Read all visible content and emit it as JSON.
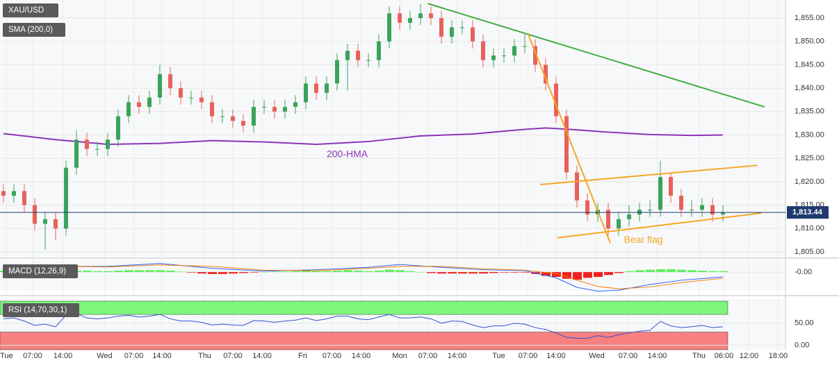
{
  "chart_data": [
    {
      "type": "candlestick",
      "title": "XAU/USD",
      "indicator_label": "SMA (200,0)",
      "up_color": "#3aa35b",
      "down_color": "#e8615a",
      "grid": true,
      "xlim": [
        -0.33,
        75
      ],
      "ylim": [
        1803.96,
        1858.86
      ],
      "xticks": [
        {
          "value": 0.3,
          "label": "Tue"
        },
        {
          "value": 2.8,
          "label": "07:00"
        },
        {
          "value": 5.7,
          "label": "14:00"
        },
        {
          "value": 9.7,
          "label": "Wed"
        },
        {
          "value": 12.5,
          "label": "07:00"
        },
        {
          "value": 15.2,
          "label": "14:00"
        },
        {
          "value": 19.3,
          "label": "Thu"
        },
        {
          "value": 22,
          "label": "07:00"
        },
        {
          "value": 24.8,
          "label": "14:00"
        },
        {
          "value": 28.7,
          "label": "Fri"
        },
        {
          "value": 31.5,
          "label": "07:00"
        },
        {
          "value": 34.3,
          "label": "14:00"
        },
        {
          "value": 38,
          "label": "Mon"
        },
        {
          "value": 40.7,
          "label": "07:00"
        },
        {
          "value": 43.5,
          "label": "14:00"
        },
        {
          "value": 47.5,
          "label": "Tue"
        },
        {
          "value": 50.3,
          "label": "07:00"
        },
        {
          "value": 53,
          "label": "14:00"
        },
        {
          "value": 56.9,
          "label": "Wed"
        },
        {
          "value": 59.9,
          "label": "07:00"
        },
        {
          "value": 62.7,
          "label": "14:00"
        },
        {
          "value": 66.7,
          "label": "Thu"
        },
        {
          "value": 69.1,
          "label": "06:00"
        },
        {
          "value": 71.5,
          "label": "12:00"
        },
        {
          "value": 74.3,
          "label": "18:00"
        }
      ],
      "yticks": [
        {
          "value": 1805,
          "label": "1,805.00"
        },
        {
          "value": 1810,
          "label": "1,810.00"
        },
        {
          "value": 1815,
          "label": "1,815.00"
        },
        {
          "value": 1820,
          "label": "1,820.00"
        },
        {
          "value": 1825,
          "label": "1,825.00"
        },
        {
          "value": 1830,
          "label": "1,830.00"
        },
        {
          "value": 1835,
          "label": "1,835.00"
        },
        {
          "value": 1840,
          "label": "1,840.00"
        },
        {
          "value": 1845,
          "label": "1,845.00"
        },
        {
          "value": 1850,
          "label": "1,850.00"
        },
        {
          "value": 1855,
          "label": "1,855.00"
        }
      ],
      "open": [
        1818,
        1817,
        1818,
        1815,
        1811,
        1812,
        1810,
        1823,
        1829,
        1827,
        1827,
        1829,
        1834,
        1837,
        1836,
        1838,
        1843,
        1840,
        1838,
        1838,
        1837,
        1834,
        1834,
        1833,
        1832,
        1836,
        1836,
        1835,
        1836,
        1837,
        1841,
        1839,
        1841,
        1846,
        1848,
        1846,
        1846,
        1850,
        1856,
        1854,
        1855,
        1856,
        1855,
        1851,
        1853,
        1853,
        1850,
        1846,
        1847,
        1847,
        1849,
        1849,
        1845,
        1841,
        1834,
        1822,
        1816,
        1813,
        1814,
        1810,
        1812,
        1813,
        1814,
        1814,
        1821,
        1817,
        1814,
        1814,
        1815,
        1813
      ],
      "high": [
        1819.5,
        1819.5,
        1819.5,
        1816.5,
        1813.5,
        1813.5,
        1824.5,
        1831,
        1830.5,
        1828.5,
        1830.5,
        1835.5,
        1838.5,
        1838.5,
        1839.5,
        1845,
        1844.5,
        1841.5,
        1839.5,
        1839.5,
        1838.5,
        1835.5,
        1835.5,
        1834.5,
        1837.5,
        1837.5,
        1837.5,
        1837.5,
        1838.5,
        1842.5,
        1842.5,
        1842.5,
        1847.5,
        1849.5,
        1849.5,
        1847.5,
        1851.5,
        1857.5,
        1857.5,
        1856.5,
        1858,
        1857.5,
        1856.5,
        1854.5,
        1854.5,
        1854.5,
        1851.5,
        1848.5,
        1848.5,
        1850.5,
        1851.5,
        1850.5,
        1846.5,
        1842.5,
        1835.5,
        1823.5,
        1817.5,
        1815.5,
        1815.5,
        1813.5,
        1815,
        1815.5,
        1816,
        1824.5,
        1822,
        1818.5,
        1816,
        1816.5,
        1816.5,
        1815
      ],
      "low": [
        1815.5,
        1815.5,
        1813.5,
        1809.5,
        1805.5,
        1807.5,
        1808.5,
        1821.5,
        1825.5,
        1825.5,
        1825.5,
        1827.5,
        1832.5,
        1834.5,
        1834.5,
        1836.5,
        1838.5,
        1836.5,
        1836.5,
        1835.5,
        1832.5,
        1832.5,
        1831.5,
        1830.5,
        1830.5,
        1834.5,
        1833.5,
        1833.5,
        1834.5,
        1835.5,
        1837.5,
        1837.5,
        1839.5,
        1839.5,
        1844.5,
        1844.5,
        1844.5,
        1848.5,
        1852.5,
        1852.5,
        1853.5,
        1853.5,
        1849.5,
        1849.5,
        1851.5,
        1848.5,
        1844.5,
        1844.5,
        1845.5,
        1845.5,
        1847.5,
        1843.5,
        1839.5,
        1832.5,
        1820.5,
        1814.5,
        1811.5,
        1811.5,
        1808.5,
        1808.5,
        1810.5,
        1811.5,
        1812.5,
        1812.5,
        1815.5,
        1812.5,
        1812.5,
        1812.5,
        1811.5,
        1811.5
      ],
      "close": [
        1817,
        1818,
        1815,
        1811,
        1812,
        1810,
        1823,
        1829,
        1827,
        1827,
        1829,
        1834,
        1837,
        1836,
        1838,
        1843,
        1840,
        1838,
        1838,
        1837,
        1834,
        1834,
        1833,
        1832,
        1836,
        1836,
        1835,
        1836,
        1837,
        1841,
        1839,
        1841,
        1846,
        1848,
        1846,
        1846,
        1850,
        1856,
        1854,
        1855,
        1856,
        1855,
        1851,
        1853,
        1853,
        1850,
        1846,
        1847,
        1847,
        1849,
        1849,
        1845,
        1841,
        1834,
        1822,
        1816,
        1813,
        1814,
        1810,
        1812,
        1813,
        1814,
        1814,
        1821,
        1817,
        1814,
        1814,
        1815,
        1813,
        1813.44
      ],
      "hma": {
        "name": "200-HMA",
        "color": "#8a35b5",
        "x": [
          0,
          5,
          10,
          15,
          20,
          25,
          30,
          35,
          40,
          45,
          50,
          52,
          55,
          58,
          62,
          66,
          69
        ],
        "values": [
          1830.3,
          1829,
          1828,
          1828.2,
          1828.8,
          1828.5,
          1828,
          1828.6,
          1829.8,
          1830.2,
          1831.2,
          1831.5,
          1831.1,
          1830.6,
          1830.1,
          1829.9,
          1830
        ]
      },
      "trendlines": [
        {
          "color": "#3fae3f",
          "x": [
            40.7,
            73
          ],
          "y": [
            1858.1,
            1836
          ]
        },
        {
          "color": "#f5a623",
          "x": [
            50.3,
            58.2
          ],
          "y": [
            1851.7,
            1806.9
          ]
        },
        {
          "color": "#f5a623",
          "x": [
            51.5,
            72.3
          ],
          "y": [
            1819.4,
            1823.5
          ]
        },
        {
          "color": "#f5a623",
          "x": [
            53.1,
            72.7
          ],
          "y": [
            1808,
            1813.3
          ]
        }
      ],
      "annotation": {
        "text": "Bear flag",
        "color": "#f5a623",
        "x": 59.5,
        "y": 1807.5
      },
      "current_price": {
        "value": 1813.44,
        "label": "1,813.44",
        "color": "#1f3a6e"
      }
    },
    {
      "type": "macd",
      "title": "MACD (12,26,9)",
      "xlim": [
        -0.33,
        75
      ],
      "ylim": [
        -4.2,
        2.2
      ],
      "yticks": [
        {
          "value": 0,
          "label": "-0.00"
        }
      ],
      "pos_color": "#5df05d",
      "neg_color": "#f02020",
      "histogram": [
        0.3,
        0.3,
        0.2,
        0.1,
        0.1,
        0.0,
        0.2,
        0.3,
        0.3,
        0.2,
        0.2,
        0.3,
        0.4,
        0.4,
        0.4,
        0.4,
        0.3,
        0.1,
        -0.1,
        -0.3,
        -0.4,
        -0.4,
        -0.3,
        -0.2,
        -0.1,
        0.0,
        0.1,
        0.1,
        0.2,
        0.3,
        0.2,
        0.2,
        0.3,
        0.4,
        0.3,
        0.2,
        0.3,
        0.5,
        0.4,
        0.2,
        0.0,
        -0.2,
        -0.3,
        -0.3,
        -0.3,
        -0.3,
        -0.3,
        -0.2,
        -0.1,
        -0.1,
        -0.1,
        -0.4,
        -0.8,
        -1.0,
        -1.4,
        -1.6,
        -1.2,
        -1.0,
        -0.6,
        -0.2,
        0.2,
        0.4,
        0.5,
        0.6,
        0.6,
        0.5,
        0.4,
        0.3,
        0.2,
        0.2
      ],
      "x": [
        0,
        5,
        10,
        15,
        20,
        25,
        30,
        35,
        38,
        42,
        46,
        50,
        53,
        55,
        57,
        59,
        62,
        65,
        69
      ],
      "series": [
        {
          "color": "#2962ff",
          "values": [
            1.4,
            1.2,
            1.2,
            1.8,
            0.8,
            0.2,
            0.5,
            1.0,
            1.6,
            1.0,
            0.5,
            0.3,
            -1.2,
            -3.2,
            -4.0,
            -3.8,
            -2.6,
            -1.7,
            -1.0
          ]
        },
        {
          "color": "#f57c00",
          "values": [
            1.2,
            1.2,
            1.1,
            1.5,
            1.2,
            0.4,
            0.3,
            0.8,
            1.2,
            1.2,
            0.7,
            0.4,
            -0.3,
            -1.7,
            -3.0,
            -3.5,
            -3.1,
            -2.2,
            -1.3
          ]
        }
      ]
    },
    {
      "type": "line",
      "title": "RSI (14,70,30,1)",
      "xlim": [
        -0.33,
        75
      ],
      "ylim": [
        -10,
        100
      ],
      "yticks": [
        {
          "value": 0,
          "label": "0.00"
        },
        {
          "value": 50,
          "label": "50.00"
        }
      ],
      "bands": [
        {
          "range": [
            70,
            100
          ],
          "color": "#7cf77c"
        },
        {
          "range": [
            -10,
            30
          ],
          "color": "#f78080"
        }
      ],
      "color": "#3050d0",
      "values": [
        60,
        62,
        55,
        45,
        48,
        42,
        68,
        72,
        62,
        60,
        62,
        66,
        68,
        64,
        66,
        70,
        60,
        55,
        55,
        52,
        46,
        48,
        46,
        45,
        56,
        55,
        52,
        55,
        57,
        62,
        56,
        60,
        66,
        66,
        60,
        58,
        64,
        70,
        62,
        62,
        64,
        60,
        50,
        55,
        54,
        46,
        40,
        44,
        44,
        50,
        48,
        40,
        36,
        28,
        18,
        16,
        16,
        22,
        18,
        24,
        28,
        32,
        34,
        54,
        44,
        40,
        42,
        45,
        40,
        42
      ]
    }
  ]
}
